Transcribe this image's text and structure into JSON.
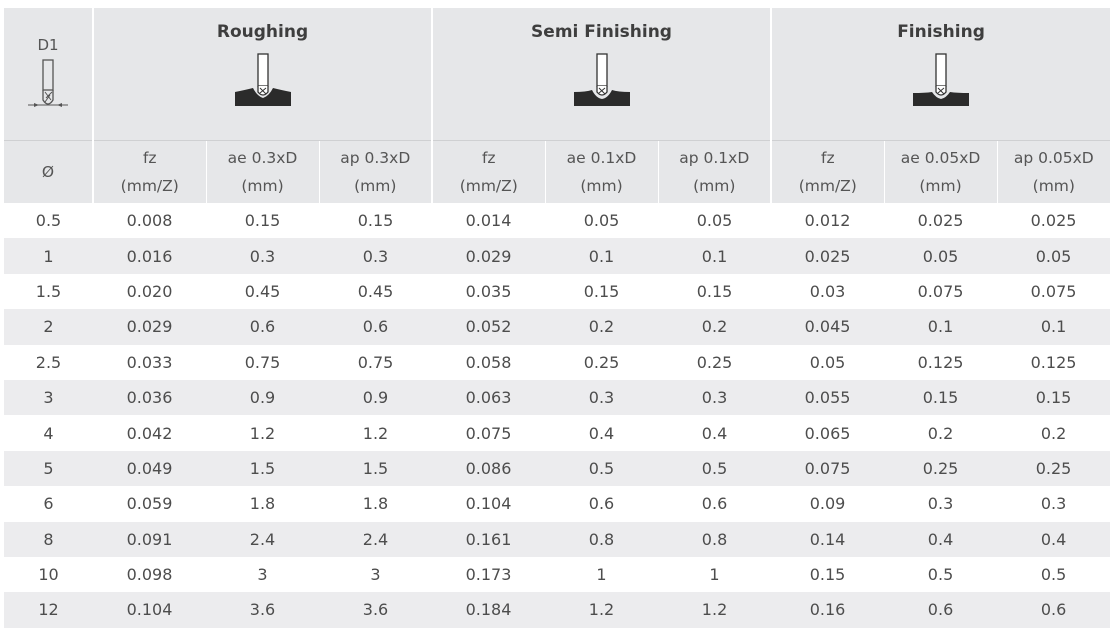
{
  "header": {
    "d1_label": "D1",
    "diameter_symbol": "Ø",
    "groups": [
      {
        "title": "Roughing",
        "icon": "roughing-cut-icon"
      },
      {
        "title": "Semi Finishing",
        "icon": "semi-finishing-cut-icon"
      },
      {
        "title": "Finishing",
        "icon": "finishing-cut-icon"
      }
    ],
    "subheaders": [
      {
        "line1": "fz",
        "line2": "(mm/Z)"
      },
      {
        "line1": "ae 0.3xD",
        "line2": "(mm)"
      },
      {
        "line1": "ap 0.3xD",
        "line2": "(mm)"
      },
      {
        "line1": "fz",
        "line2": "(mm/Z)"
      },
      {
        "line1": "ae 0.1xD",
        "line2": "(mm)"
      },
      {
        "line1": "ap 0.1xD",
        "line2": "(mm)"
      },
      {
        "line1": "fz",
        "line2": "(mm/Z)"
      },
      {
        "line1": "ae 0.05xD",
        "line2": "(mm)"
      },
      {
        "line1": "ap 0.05xD",
        "line2": "(mm)"
      }
    ]
  },
  "rows": [
    [
      "0.5",
      "0.008",
      "0.15",
      "0.15",
      "0.014",
      "0.05",
      "0.05",
      "0.012",
      "0.025",
      "0.025"
    ],
    [
      "1",
      "0.016",
      "0.3",
      "0.3",
      "0.029",
      "0.1",
      "0.1",
      "0.025",
      "0.05",
      "0.05"
    ],
    [
      "1.5",
      "0.020",
      "0.45",
      "0.45",
      "0.035",
      "0.15",
      "0.15",
      "0.03",
      "0.075",
      "0.075"
    ],
    [
      "2",
      "0.029",
      "0.6",
      "0.6",
      "0.052",
      "0.2",
      "0.2",
      "0.045",
      "0.1",
      "0.1"
    ],
    [
      "2.5",
      "0.033",
      "0.75",
      "0.75",
      "0.058",
      "0.25",
      "0.25",
      "0.05",
      "0.125",
      "0.125"
    ],
    [
      "3",
      "0.036",
      "0.9",
      "0.9",
      "0.063",
      "0.3",
      "0.3",
      "0.055",
      "0.15",
      "0.15"
    ],
    [
      "4",
      "0.042",
      "1.2",
      "1.2",
      "0.075",
      "0.4",
      "0.4",
      "0.065",
      "0.2",
      "0.2"
    ],
    [
      "5",
      "0.049",
      "1.5",
      "1.5",
      "0.086",
      "0.5",
      "0.5",
      "0.075",
      "0.25",
      "0.25"
    ],
    [
      "6",
      "0.059",
      "1.8",
      "1.8",
      "0.104",
      "0.6",
      "0.6",
      "0.09",
      "0.3",
      "0.3"
    ],
    [
      "8",
      "0.091",
      "2.4",
      "2.4",
      "0.161",
      "0.8",
      "0.8",
      "0.14",
      "0.4",
      "0.4"
    ],
    [
      "10",
      "0.098",
      "3",
      "3",
      "0.173",
      "1",
      "1",
      "0.15",
      "0.5",
      "0.5"
    ],
    [
      "12",
      "0.104",
      "3.6",
      "3.6",
      "0.184",
      "1.2",
      "1.2",
      "0.16",
      "0.6",
      "0.6"
    ]
  ]
}
